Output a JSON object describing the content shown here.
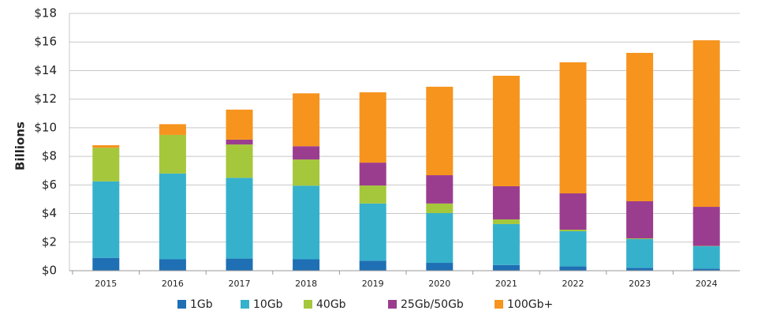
{
  "chart_data": {
    "type": "stacked_bar",
    "y_label": "Billions",
    "categories": [
      "2015",
      "2016",
      "2017",
      "2018",
      "2019",
      "2020",
      "2021",
      "2022",
      "2023",
      "2024"
    ],
    "series": [
      {
        "name": "1Gb",
        "color": "#1f6fb4",
        "values": [
          0.9,
          0.8,
          0.85,
          0.8,
          0.7,
          0.55,
          0.4,
          0.3,
          0.2,
          0.15
        ]
      },
      {
        "name": "10Gb",
        "color": "#36b1cc",
        "values": [
          5.35,
          6.0,
          5.65,
          5.15,
          4.0,
          3.48,
          2.86,
          2.46,
          2.01,
          1.56
        ]
      },
      {
        "name": "40Gb",
        "color": "#a5c73b",
        "values": [
          2.35,
          2.7,
          2.33,
          1.83,
          1.26,
          0.67,
          0.33,
          0.11,
          0.05,
          0.02
        ]
      },
      {
        "name": "25Gb/50Gb",
        "color": "#9b3d8f",
        "values": [
          0,
          0,
          0.34,
          0.93,
          1.6,
          1.98,
          2.32,
          2.54,
          2.6,
          2.74
        ]
      },
      {
        "name": "100Gb+",
        "color": "#f6941e",
        "values": [
          0.18,
          0.75,
          2.1,
          3.7,
          4.92,
          6.19,
          7.73,
          9.17,
          10.38,
          11.65
        ]
      }
    ],
    "ylim": [
      0,
      18
    ],
    "yticks": [
      {
        "value": 0,
        "label": "$0"
      },
      {
        "value": 2,
        "label": "$2"
      },
      {
        "value": 4,
        "label": "$4"
      },
      {
        "value": 6,
        "label": "$6"
      },
      {
        "value": 8,
        "label": "$8"
      },
      {
        "value": 10,
        "label": "$10"
      },
      {
        "value": 12,
        "label": "$12"
      },
      {
        "value": 14,
        "label": "$14"
      },
      {
        "value": 16,
        "label": "$16"
      },
      {
        "value": 18,
        "label": "$18"
      }
    ],
    "grid": true
  }
}
